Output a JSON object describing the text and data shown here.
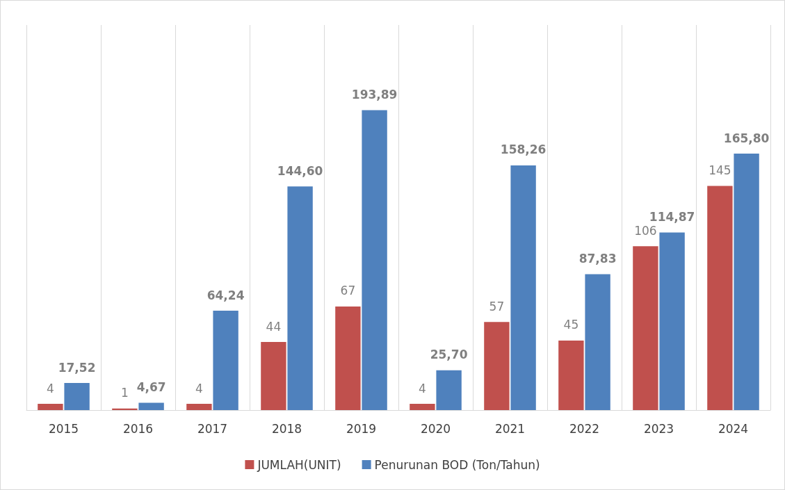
{
  "chart_data": {
    "type": "bar",
    "categories": [
      "2015",
      "2016",
      "2017",
      "2018",
      "2019",
      "2020",
      "2021",
      "2022",
      "2023",
      "2024"
    ],
    "series": [
      {
        "name": "JUMLAH(UNIT)",
        "color": "#c0504d",
        "values": [
          4,
          1,
          4,
          44,
          67,
          4,
          57,
          45,
          106,
          145
        ],
        "value_labels": [
          "4",
          "1",
          "4",
          "44",
          "67",
          "4",
          "57",
          "45",
          "106",
          "145"
        ]
      },
      {
        "name": "Penurunan BOD (Ton/Tahun)",
        "color": "#4f81bd",
        "values": [
          17.52,
          4.67,
          64.24,
          144.6,
          193.89,
          25.7,
          158.26,
          87.83,
          114.87,
          165.8
        ],
        "value_labels": [
          "17,52",
          "4,67",
          "64,24",
          "144,60",
          "193,89",
          "25,70",
          "158,26",
          "87,83",
          "114,87",
          "165,80"
        ]
      }
    ],
    "grid": "x",
    "legend": "bottom"
  }
}
